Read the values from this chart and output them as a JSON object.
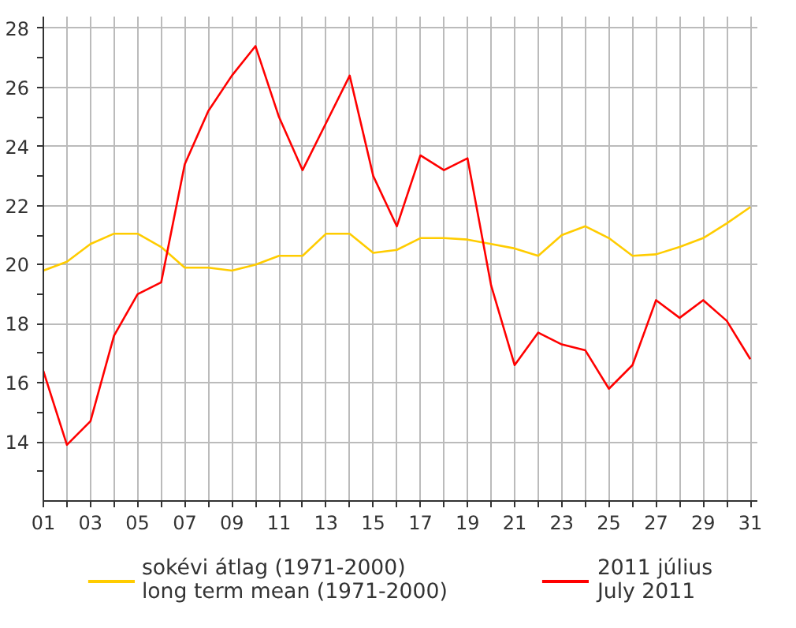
{
  "chart_data": {
    "type": "line",
    "x": [
      1,
      2,
      3,
      4,
      5,
      6,
      7,
      8,
      9,
      10,
      11,
      12,
      13,
      14,
      15,
      16,
      17,
      18,
      19,
      20,
      21,
      22,
      23,
      24,
      25,
      26,
      27,
      28,
      29,
      30,
      31
    ],
    "series": [
      {
        "name": "sokévi átlag (1971-2000)\nlong term mean (1971-2000)",
        "color": "#ffcc00",
        "values": [
          19.8,
          20.1,
          20.7,
          21.05,
          21.05,
          20.6,
          19.9,
          19.9,
          19.8,
          20.0,
          20.3,
          20.3,
          21.05,
          21.05,
          20.4,
          20.5,
          20.9,
          20.9,
          20.85,
          20.7,
          20.55,
          20.3,
          21.0,
          21.3,
          20.9,
          20.3,
          20.35,
          20.6,
          20.9,
          21.4,
          21.95
        ]
      },
      {
        "name": "2011 július\nJuly 2011",
        "color": "#ff0000",
        "values": [
          16.4,
          13.9,
          14.7,
          17.6,
          19.0,
          19.4,
          23.4,
          25.2,
          26.4,
          27.4,
          25.0,
          23.2,
          24.8,
          26.4,
          23.0,
          21.3,
          23.7,
          23.2,
          23.6,
          19.3,
          16.6,
          17.7,
          17.3,
          17.1,
          15.8,
          16.6,
          18.8,
          18.2,
          18.8,
          18.1,
          16.8
        ]
      }
    ],
    "xlim": [
      1,
      31.3
    ],
    "xticks": [
      {
        "value": 1,
        "label": "01"
      },
      {
        "value": 2,
        "label": null
      },
      {
        "value": 3,
        "label": "03"
      },
      {
        "value": 4,
        "label": null
      },
      {
        "value": 5,
        "label": "05"
      },
      {
        "value": 6,
        "label": null
      },
      {
        "value": 7,
        "label": "07"
      },
      {
        "value": 8,
        "label": null
      },
      {
        "value": 9,
        "label": "09"
      },
      {
        "value": 10,
        "label": null
      },
      {
        "value": 11,
        "label": "11"
      },
      {
        "value": 12,
        "label": null
      },
      {
        "value": 13,
        "label": "13"
      },
      {
        "value": 14,
        "label": null
      },
      {
        "value": 15,
        "label": "15"
      },
      {
        "value": 16,
        "label": null
      },
      {
        "value": 17,
        "label": "17"
      },
      {
        "value": 18,
        "label": null
      },
      {
        "value": 19,
        "label": "19"
      },
      {
        "value": 20,
        "label": null
      },
      {
        "value": 21,
        "label": "21"
      },
      {
        "value": 22,
        "label": null
      },
      {
        "value": 23,
        "label": "23"
      },
      {
        "value": 24,
        "label": null
      },
      {
        "value": 25,
        "label": "25"
      },
      {
        "value": 26,
        "label": null
      },
      {
        "value": 27,
        "label": "27"
      },
      {
        "value": 28,
        "label": null
      },
      {
        "value": 29,
        "label": "29"
      },
      {
        "value": 30,
        "label": null
      },
      {
        "value": 31,
        "label": "31"
      }
    ],
    "ylim": [
      12,
      28.4
    ],
    "yticks": [
      {
        "value": 13,
        "label": null
      },
      14,
      {
        "value": 15,
        "label": null
      },
      16,
      {
        "value": 17,
        "label": null
      },
      18,
      {
        "value": 19,
        "label": null
      },
      20,
      {
        "value": 21,
        "label": null
      },
      22,
      {
        "value": 23,
        "label": null
      },
      24,
      {
        "value": 25,
        "label": null
      },
      26,
      {
        "value": 27,
        "label": null
      },
      28
    ],
    "grid": true,
    "legend": "bottom",
    "marker": "none",
    "line_style": "solid"
  }
}
